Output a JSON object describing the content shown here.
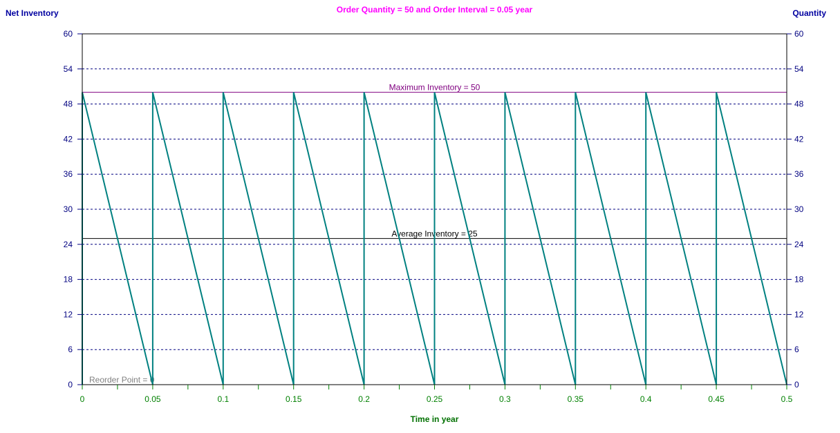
{
  "colors": {
    "title": "#ff00ff",
    "axis_title": "#0000a0",
    "x_title": "#007000",
    "series": "#008080",
    "grid": "#000080",
    "max_line": "#800080",
    "avg_line": "#000000",
    "reorder_text": "#808080",
    "x_tick_text": "#008000",
    "y_tick_text": "#000080"
  },
  "chart_data": {
    "type": "line",
    "title": "Order Quantity = 50 and Order Interval = 0.05 year",
    "ylabel_left": "Net Inventory",
    "ylabel_right": "Quantity",
    "xlabel": "Time in year",
    "xlim": [
      0,
      0.5
    ],
    "ylim": [
      0,
      60
    ],
    "x_ticks": [
      "0",
      "0.05",
      "0.1",
      "0.15",
      "0.2",
      "0.25",
      "0.3",
      "0.35",
      "0.4",
      "0.45",
      "0.5"
    ],
    "x_tick_values": [
      0,
      0.05,
      0.1,
      0.15,
      0.2,
      0.25,
      0.3,
      0.35,
      0.4,
      0.45,
      0.5
    ],
    "y_ticks": [
      "0",
      "6",
      "12",
      "18",
      "24",
      "30",
      "36",
      "42",
      "48",
      "54",
      "60"
    ],
    "y_tick_values": [
      0,
      6,
      12,
      18,
      24,
      30,
      36,
      42,
      48,
      54,
      60
    ],
    "grid": true,
    "series": [
      {
        "x": [
          0,
          0,
          0.05,
          0.05,
          0.1,
          0.1,
          0.15,
          0.15,
          0.2,
          0.2,
          0.25,
          0.25,
          0.3,
          0.3,
          0.35,
          0.35,
          0.4,
          0.4,
          0.45,
          0.45,
          0.5
        ],
        "y": [
          0,
          50,
          0,
          50,
          0,
          50,
          0,
          50,
          0,
          50,
          0,
          50,
          0,
          50,
          0,
          50,
          0,
          50,
          0,
          50,
          0
        ]
      }
    ],
    "reference_lines": [
      {
        "label": "Maximum Inventory = 50",
        "y": 50
      },
      {
        "label": "Average Inventory = 25",
        "y": 25
      },
      {
        "label": "Reorder Point = 0",
        "y": 0
      }
    ]
  }
}
